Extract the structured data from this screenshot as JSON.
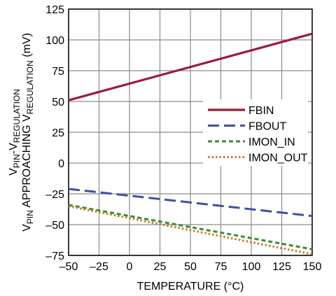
{
  "chart_data": {
    "type": "line",
    "title": "",
    "xlabel": "TEMPERATURE (°C)",
    "ylabel_lines": [
      {
        "parts": [
          {
            "text": "V",
            "sub": false
          },
          {
            "text": "PIN",
            "sub": true
          },
          {
            "text": "-V",
            "sub": false
          },
          {
            "text": "REGULATION",
            "sub": true
          }
        ]
      },
      {
        "parts": [
          {
            "text": "V",
            "sub": false
          },
          {
            "text": "PIN",
            "sub": true
          },
          {
            "text": " APPROACHING V",
            "sub": false
          },
          {
            "text": "REGULATION",
            "sub": true
          },
          {
            "text": " (mV)",
            "sub": false
          }
        ]
      }
    ],
    "xlim": [
      -50,
      150
    ],
    "ylim": [
      -75,
      125
    ],
    "x_ticks": [
      -50,
      -25,
      0,
      25,
      50,
      75,
      100,
      125,
      150
    ],
    "y_ticks": [
      -75,
      -50,
      -25,
      0,
      25,
      50,
      75,
      100,
      125
    ],
    "x_tick_labels": [
      "–50",
      "–25",
      "0",
      "25",
      "50",
      "75",
      "100",
      "125",
      "150"
    ],
    "y_tick_labels": [
      "–75",
      "–50",
      "–25",
      "0",
      "25",
      "50",
      "75",
      "100",
      "125"
    ],
    "grid": true,
    "legend_position": "right-center",
    "series": [
      {
        "name": "FBIN",
        "color": "#9b1b3c",
        "style": "solid",
        "x": [
          -50,
          150
        ],
        "y": [
          51,
          105
        ]
      },
      {
        "name": "FBOUT",
        "color": "#3f51a0",
        "style": "dashed",
        "x": [
          -50,
          150
        ],
        "y": [
          -21,
          -43
        ]
      },
      {
        "name": "IMON_IN",
        "color": "#3a8a3a",
        "style": "short-dashed",
        "x": [
          -50,
          150
        ],
        "y": [
          -34,
          -70
        ]
      },
      {
        "name": "IMON_OUT",
        "color": "#c87a2a",
        "style": "dotted",
        "x": [
          -50,
          150
        ],
        "y": [
          -35,
          -74
        ]
      }
    ]
  }
}
